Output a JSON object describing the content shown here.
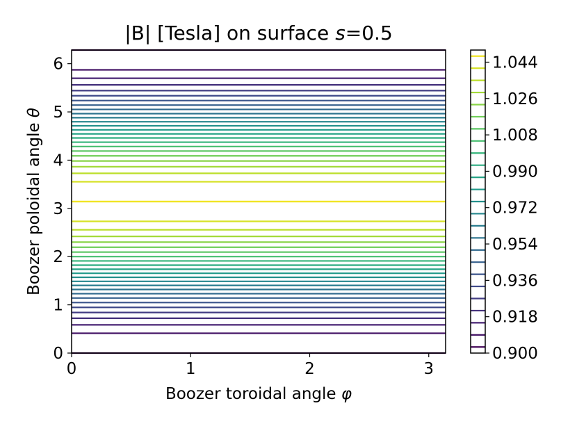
{
  "chart_data": {
    "type": "contour",
    "title_main": "|B| [Tesla] on surface ",
    "title_var": "s",
    "title_eq": "=0.5",
    "xlabel_main": "Boozer toroidal angle ",
    "xlabel_symbol": "φ",
    "ylabel_main": "Boozer poloidal angle ",
    "ylabel_symbol": "θ",
    "xlim": [
      0,
      3.14159
    ],
    "ylim": [
      0,
      6.28319
    ],
    "x_ticks": [
      "0",
      "1",
      "2",
      "3"
    ],
    "y_ticks": [
      "0",
      "1",
      "2",
      "3",
      "4",
      "5",
      "6"
    ],
    "colorbar": {
      "min": 0.9,
      "max": 1.05,
      "levels": [
        0.903,
        0.909,
        0.915,
        0.921,
        0.927,
        0.933,
        0.939,
        0.945,
        0.951,
        0.957,
        0.963,
        0.969,
        0.975,
        0.981,
        0.987,
        0.993,
        0.999,
        1.005,
        1.011,
        1.017,
        1.023,
        1.029,
        1.035,
        1.041,
        1.047
      ],
      "tick_labels": [
        "0.900",
        "0.918",
        "0.936",
        "0.954",
        "0.972",
        "0.990",
        "1.008",
        "1.026",
        "1.044"
      ],
      "tick_values": [
        0.9,
        0.918,
        0.936,
        0.954,
        0.972,
        0.99,
        1.008,
        1.026,
        1.044
      ],
      "colormap_stops": [
        "#440154",
        "#482878",
        "#3e4989",
        "#31688e",
        "#26828e",
        "#1f9e89",
        "#35b779",
        "#6ece58",
        "#b5de2b",
        "#fde725"
      ]
    },
    "field_model": "|B| = 0.975 - 0.072*cos(theta) (independent of phi)"
  }
}
